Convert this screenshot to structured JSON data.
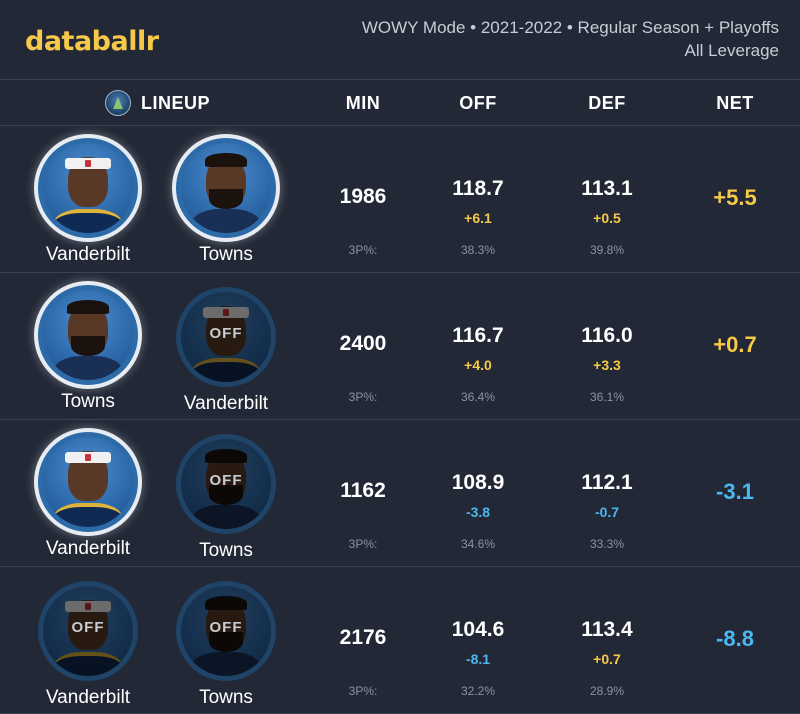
{
  "brand": {
    "logo_text": "databallr",
    "accent": "#f7c948",
    "neg_color": "#4cb8f2"
  },
  "subtitle": {
    "line1": "WOWY Mode • 2021-2022 • Regular Season + Playoffs",
    "line2": "All Leverage"
  },
  "columns": {
    "lineup": "LINEUP",
    "min": "MIN",
    "off": "OFF",
    "def": "DEF",
    "net": "NET",
    "team_icon": "timberwolves-logo-icon"
  },
  "rows": [
    {
      "players": [
        {
          "name": "Vanderbilt",
          "status": "on",
          "label": ""
        },
        {
          "name": "Towns",
          "status": "on",
          "label": ""
        }
      ],
      "min": "1986",
      "off": "118.7",
      "off_delta": "+6.1",
      "def": "113.1",
      "def_delta": "+0.5",
      "net": "+5.5",
      "threep_label": "3P%:",
      "off_3p": "38.3%",
      "def_3p": "39.8%"
    },
    {
      "players": [
        {
          "name": "Towns",
          "status": "on",
          "label": ""
        },
        {
          "name": "Vanderbilt",
          "status": "off",
          "label": "OFF"
        }
      ],
      "min": "2400",
      "off": "116.7",
      "off_delta": "+4.0",
      "def": "116.0",
      "def_delta": "+3.3",
      "net": "+0.7",
      "threep_label": "3P%:",
      "off_3p": "36.4%",
      "def_3p": "36.1%"
    },
    {
      "players": [
        {
          "name": "Vanderbilt",
          "status": "on",
          "label": ""
        },
        {
          "name": "Towns",
          "status": "off",
          "label": "OFF"
        }
      ],
      "min": "1162",
      "off": "108.9",
      "off_delta": "-3.8",
      "def": "112.1",
      "def_delta": "-0.7",
      "net": "-3.1",
      "threep_label": "3P%:",
      "off_3p": "34.6%",
      "def_3p": "33.3%"
    },
    {
      "players": [
        {
          "name": "Vanderbilt",
          "status": "off",
          "label": "OFF"
        },
        {
          "name": "Towns",
          "status": "off",
          "label": "OFF"
        }
      ],
      "min": "2176",
      "off": "104.6",
      "off_delta": "-8.1",
      "def": "113.4",
      "def_delta": "+0.7",
      "net": "-8.8",
      "threep_label": "3P%:",
      "off_3p": "32.2%",
      "def_3p": "28.9%"
    }
  ]
}
